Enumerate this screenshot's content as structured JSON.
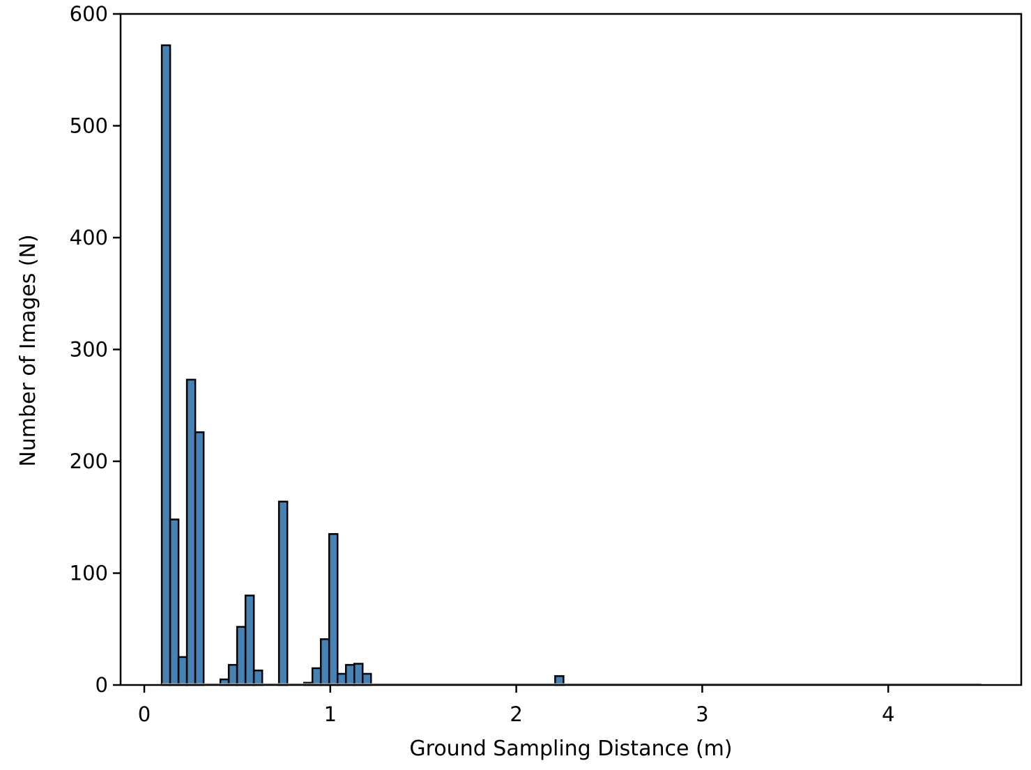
{
  "chart_data": {
    "type": "bar",
    "subtype": "histogram",
    "title": "",
    "xlabel": "Ground Sampling Distance (m)",
    "ylabel": "Number of Images (N)",
    "xlim": [
      -0.13,
      4.83
    ],
    "ylim": [
      0,
      600
    ],
    "xticks": [
      0,
      1,
      2,
      3,
      4
    ],
    "xtick_labels": [
      "0",
      "1",
      "2",
      "3",
      "4"
    ],
    "yticks": [
      0,
      100,
      200,
      300,
      400,
      500,
      600
    ],
    "ytick_labels": [
      "0",
      "100",
      "200",
      "300",
      "400",
      "500",
      "600"
    ],
    "grid": false,
    "legend": null,
    "bar_color": "#4682b4",
    "edge_color": "#000000",
    "bin_width": 0.045,
    "range": [
      0.094,
      4.5
    ],
    "bins": [
      {
        "x0": 0.094,
        "count": 572
      },
      {
        "x0": 0.139,
        "count": 148
      },
      {
        "x0": 0.184,
        "count": 25
      },
      {
        "x0": 0.229,
        "count": 273
      },
      {
        "x0": 0.274,
        "count": 226
      },
      {
        "x0": 0.319,
        "count": 0
      },
      {
        "x0": 0.364,
        "count": 0
      },
      {
        "x0": 0.409,
        "count": 5
      },
      {
        "x0": 0.454,
        "count": 18
      },
      {
        "x0": 0.499,
        "count": 52
      },
      {
        "x0": 0.544,
        "count": 80
      },
      {
        "x0": 0.589,
        "count": 13
      },
      {
        "x0": 0.634,
        "count": 0
      },
      {
        "x0": 0.679,
        "count": 0
      },
      {
        "x0": 0.724,
        "count": 164
      },
      {
        "x0": 0.769,
        "count": 0
      },
      {
        "x0": 0.814,
        "count": 0
      },
      {
        "x0": 0.859,
        "count": 2
      },
      {
        "x0": 0.904,
        "count": 15
      },
      {
        "x0": 0.949,
        "count": 41
      },
      {
        "x0": 0.994,
        "count": 135
      },
      {
        "x0": 1.039,
        "count": 10
      },
      {
        "x0": 1.084,
        "count": 18
      },
      {
        "x0": 1.129,
        "count": 19
      },
      {
        "x0": 1.174,
        "count": 10
      },
      {
        "x0": 2.209,
        "count": 8
      }
    ]
  }
}
